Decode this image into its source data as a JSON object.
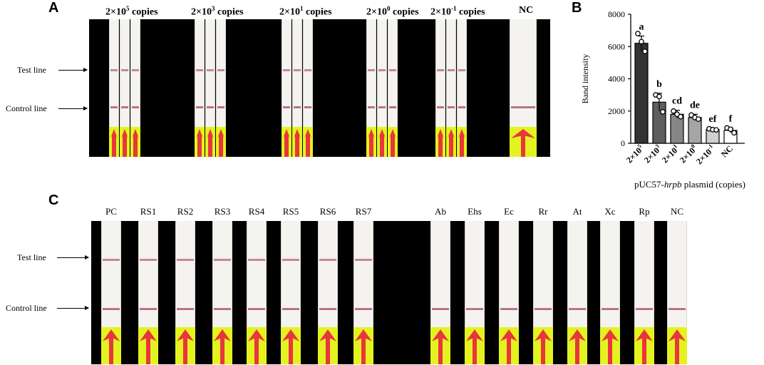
{
  "panels": {
    "a": "A",
    "b": "B",
    "c": "C"
  },
  "panel_a": {
    "concentrations": [
      {
        "base": "2×10",
        "exp": "5",
        "unit": " copies"
      },
      {
        "base": "2×10",
        "exp": "3",
        "unit": " copies"
      },
      {
        "base": "2×10",
        "exp": "1",
        "unit": " copies"
      },
      {
        "base": "2×10",
        "exp": "0",
        "unit": " copies"
      },
      {
        "base": "2×10",
        "exp": "-1",
        "unit": " copies"
      },
      {
        "base": "NC",
        "exp": "",
        "unit": ""
      }
    ],
    "test_line": "Test line",
    "control_line": "Control line"
  },
  "panel_c": {
    "strips": [
      "PC",
      "RS1",
      "RS2",
      "RS3",
      "RS4",
      "RS5",
      "RS6",
      "RS7",
      "Ab",
      "Ehs",
      "Ec",
      "Rr",
      "At",
      "Xc",
      "Rp",
      "NC"
    ],
    "test_line": "Test line",
    "control_line": "Control line"
  },
  "chart_data": {
    "type": "bar",
    "categories": [
      "2×10⁵",
      "2×10³",
      "2×10¹",
      "2×10⁰",
      "2×10⁻¹",
      "NC"
    ],
    "values": [
      6200,
      2550,
      1800,
      1600,
      850,
      800
    ],
    "errors": [
      450,
      550,
      250,
      200,
      80,
      150
    ],
    "points": [
      [
        6800,
        6300,
        5700
      ],
      [
        3000,
        2900,
        1950
      ],
      [
        2000,
        1800,
        1650
      ],
      [
        1750,
        1600,
        1500
      ],
      [
        900,
        850,
        830
      ],
      [
        950,
        870,
        650
      ]
    ],
    "significance": [
      "a",
      "b",
      "cd",
      "de",
      "ef",
      "f"
    ],
    "bar_colors": [
      "#333333",
      "#5e5e5e",
      "#868686",
      "#a5a5a5",
      "#d0d0d0",
      "#ffffff"
    ],
    "ylabel": "Band intensity",
    "xlabel_prefix": "pUC57-",
    "xlabel_italic": "hrpb",
    "xlabel_suffix": " plasmid (copies)",
    "yticks": [
      0,
      2000,
      4000,
      6000,
      8000
    ],
    "ylim": [
      0,
      8000
    ]
  }
}
